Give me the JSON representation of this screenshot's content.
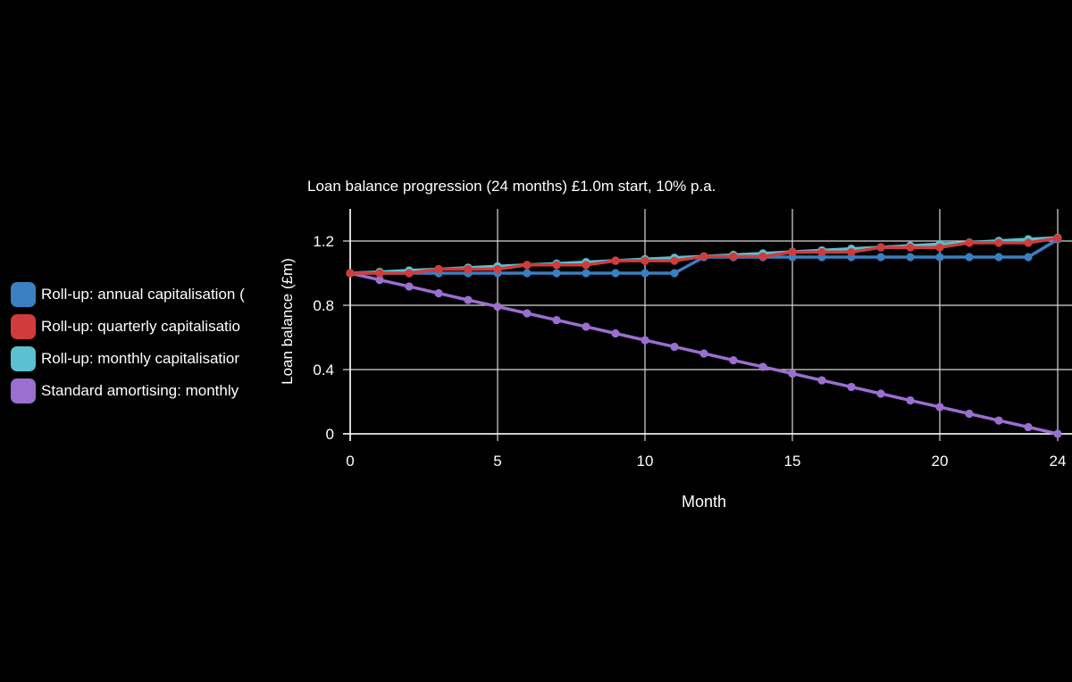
{
  "chart_data": {
    "type": "line",
    "title": "Loan balance progression (24 months) £1.0m start, 10% p.a.",
    "xlabel": "Month",
    "ylabel": "Loan balance (£m)",
    "xlim": [
      0,
      24
    ],
    "ylim": [
      0,
      1.4
    ],
    "xticks": [
      0,
      5,
      10,
      15,
      20,
      24
    ],
    "yticks": [
      0,
      0.4,
      0.8,
      1.2
    ],
    "ytick_labels": [
      "0",
      "0.4",
      "0.8",
      "1.2"
    ],
    "grid": true,
    "legend_position": "left",
    "x": [
      0,
      1,
      2,
      3,
      4,
      5,
      6,
      7,
      8,
      9,
      10,
      11,
      12,
      13,
      14,
      15,
      16,
      17,
      18,
      19,
      20,
      21,
      22,
      23,
      24
    ],
    "series": [
      {
        "name": "Roll-up: annual capitalisation (",
        "color": "#3a7fc1",
        "values": [
          1.0,
          1.0,
          1.0,
          1.0,
          1.0,
          1.0,
          1.0,
          1.0,
          1.0,
          1.0,
          1.0,
          1.0,
          1.1,
          1.1,
          1.1,
          1.1,
          1.1,
          1.1,
          1.1,
          1.1,
          1.1,
          1.1,
          1.1,
          1.1,
          1.21
        ]
      },
      {
        "name": "Roll-up: quarterly capitalisatio",
        "color": "#d13b3b",
        "values": [
          1.0,
          1.0,
          1.0,
          1.025,
          1.025,
          1.025,
          1.051,
          1.051,
          1.051,
          1.077,
          1.077,
          1.077,
          1.104,
          1.104,
          1.104,
          1.131,
          1.131,
          1.131,
          1.16,
          1.16,
          1.16,
          1.189,
          1.189,
          1.189,
          1.218
        ]
      },
      {
        "name": "Roll-up: monthly capitalisatior",
        "color": "#5bc0cf",
        "values": [
          1.0,
          1.008,
          1.017,
          1.025,
          1.034,
          1.043,
          1.051,
          1.06,
          1.069,
          1.078,
          1.087,
          1.096,
          1.105,
          1.114,
          1.123,
          1.133,
          1.142,
          1.152,
          1.161,
          1.171,
          1.181,
          1.191,
          1.201,
          1.211,
          1.221
        ]
      },
      {
        "name": "Standard amortising: monthly",
        "color": "#9a6fd0",
        "values": [
          1.0,
          0.958,
          0.917,
          0.875,
          0.833,
          0.792,
          0.75,
          0.708,
          0.667,
          0.625,
          0.583,
          0.542,
          0.5,
          0.458,
          0.417,
          0.375,
          0.333,
          0.292,
          0.25,
          0.208,
          0.167,
          0.125,
          0.083,
          0.042,
          0.0
        ]
      }
    ]
  }
}
